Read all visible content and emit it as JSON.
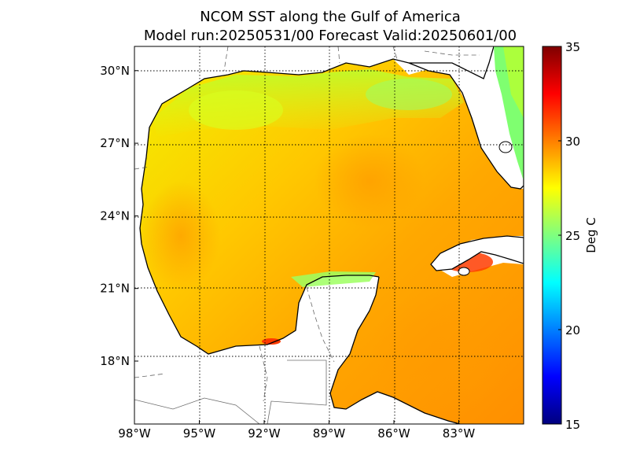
{
  "title": {
    "line1": "NCOM SST along the Gulf of America",
    "line2": "Model run:20250531/00 Forecast Valid:20250601/00"
  },
  "map": {
    "lon_range": [
      -98,
      -80
    ],
    "lat_range": [
      15.4,
      31
    ],
    "lon_ticks": [
      {
        "value": -98,
        "label": "98°W"
      },
      {
        "value": -95,
        "label": "95°W"
      },
      {
        "value": -92,
        "label": "92°W"
      },
      {
        "value": -89,
        "label": "89°W"
      },
      {
        "value": -86,
        "label": "86°W"
      },
      {
        "value": -83,
        "label": "83°W"
      }
    ],
    "lat_ticks": [
      {
        "value": 30,
        "label": "30°N"
      },
      {
        "value": 27,
        "label": "27°N"
      },
      {
        "value": 24,
        "label": "24°N"
      },
      {
        "value": 21,
        "label": "21°N"
      },
      {
        "value": 18,
        "label": "18°N"
      }
    ]
  },
  "colorbar": {
    "label": "Deg C",
    "min": 15,
    "max": 35,
    "ticks": [
      "35",
      "30",
      "25",
      "20",
      "15"
    ],
    "colors": [
      "#00007f",
      "#0000ff",
      "#007fff",
      "#00ffff",
      "#7fff7f",
      "#ffff00",
      "#ff7f00",
      "#ff0000",
      "#7f0000"
    ]
  }
}
